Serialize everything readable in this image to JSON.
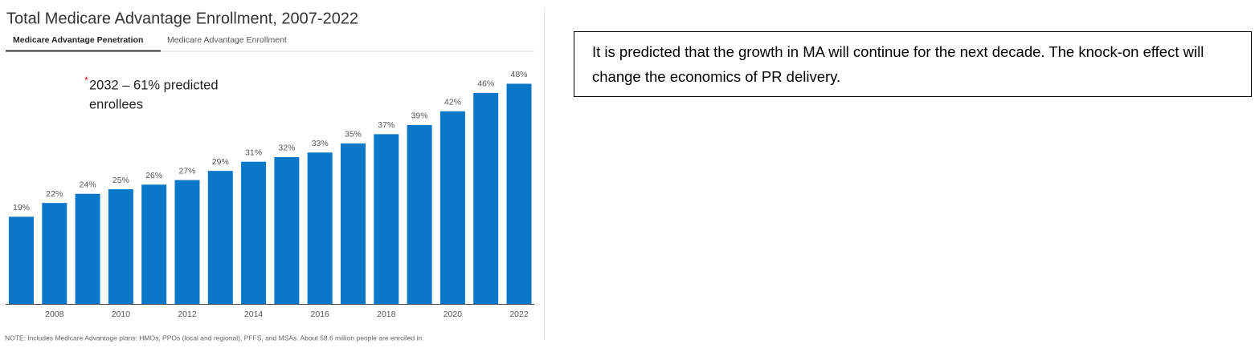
{
  "chart_data": {
    "type": "bar",
    "title": "Total Medicare Advantage Enrollment, 2007-2022",
    "tabs": [
      "Medicare Advantage Penetration",
      "Medicare Advantage Enrollment"
    ],
    "annotation_marker": "*",
    "annotation": [
      "2032 – 61% predicted",
      "enrollees"
    ],
    "note": "NOTE: Includes Medicare Advantage plans: HMOs, PPOs (local and regional), PFFS, and MSAs. About 58.6 million people are enrolled in",
    "categories": [
      null,
      "2008",
      null,
      "2010",
      null,
      "2012",
      null,
      "2014",
      null,
      "2016",
      null,
      "2018",
      null,
      "2020",
      null,
      "2022"
    ],
    "values": [
      19,
      22,
      24,
      25,
      26,
      27,
      29,
      31,
      32,
      33,
      35,
      37,
      39,
      42,
      46,
      48
    ],
    "value_labels": [
      "19%",
      "22%",
      "24%",
      "25%",
      "26%",
      "27%",
      "29%",
      "31%",
      "32%",
      "33%",
      "35%",
      "37%",
      "39%",
      "42%",
      "46%",
      "48%"
    ],
    "color": "#0a78c8"
  },
  "text_box": "It is predicted that the growth in MA will continue for the next decade. The knock-on effect will change the economics of PR delivery."
}
